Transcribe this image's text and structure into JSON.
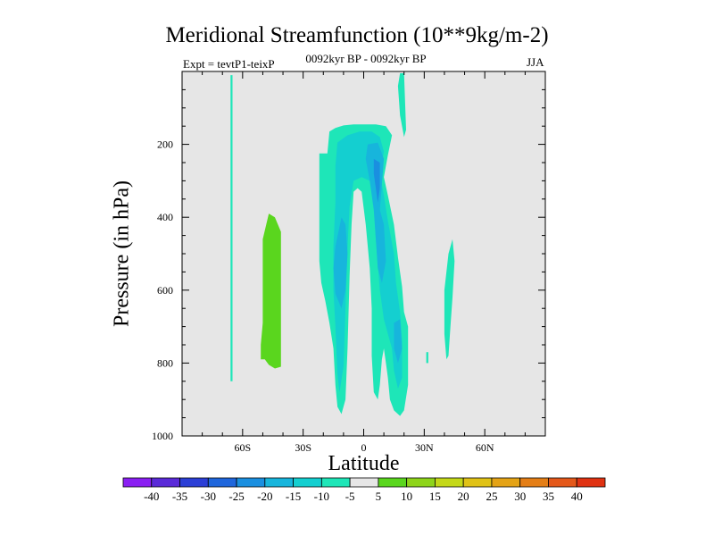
{
  "chart_data": {
    "type": "heatmap",
    "title": "Meridional Streamfunction (10**9kg/m-2)",
    "left_label": "Expt = tevtP1-teixP",
    "center_label": "0092kyr BP - 0092kyr BP",
    "right_label": "JJA",
    "xlabel": "Latitude",
    "ylabel": "Pressure (in hPa)",
    "xlim": [
      -90,
      90
    ],
    "ylim": [
      1000,
      0
    ],
    "x_ticks": [
      {
        "value": -60,
        "label": "60S"
      },
      {
        "value": -30,
        "label": "30S"
      },
      {
        "value": 0,
        "label": "0"
      },
      {
        "value": 30,
        "label": "30N"
      },
      {
        "value": 60,
        "label": "60N"
      }
    ],
    "y_ticks": [
      {
        "value": 200,
        "label": "200"
      },
      {
        "value": 400,
        "label": "400"
      },
      {
        "value": 600,
        "label": "600"
      },
      {
        "value": 800,
        "label": "800"
      },
      {
        "value": 1000,
        "label": "1000"
      }
    ],
    "background_color": "#e6e6e6",
    "colorbar": {
      "levels": [
        -40,
        -35,
        -30,
        -25,
        -20,
        -15,
        -10,
        -5,
        5,
        10,
        15,
        20,
        25,
        30,
        35,
        40
      ],
      "colors": [
        "#8a1ff2",
        "#5a2ad8",
        "#2c3fd6",
        "#1f66dc",
        "#1a8fe0",
        "#17b5dc",
        "#14cfd0",
        "#1ee6b8",
        "#e6e6e6",
        "#5ad61e",
        "#8ed41a",
        "#c4d818",
        "#e0c216",
        "#e4a316",
        "#e47e16",
        "#e4581a",
        "#e03212"
      ]
    },
    "regions": [
      {
        "label": "-10 to -5",
        "color": "#1ee6b8",
        "points": [
          [
            -66,
            10
          ],
          [
            -65,
            10
          ],
          [
            -65,
            850
          ],
          [
            -66,
            850
          ]
        ]
      },
      {
        "label": "5 to 10",
        "color": "#5ad61e",
        "points": [
          [
            -50,
            460
          ],
          [
            -47,
            390
          ],
          [
            -44,
            400
          ],
          [
            -41,
            440
          ],
          [
            -41,
            810
          ],
          [
            -44,
            815
          ],
          [
            -47,
            805
          ],
          [
            -49,
            790
          ],
          [
            -51,
            790
          ],
          [
            -51,
            750
          ],
          [
            -50,
            690
          ]
        ]
      },
      {
        "label": "-10 to -5",
        "color": "#1ee6b8",
        "points": [
          [
            -22,
            225
          ],
          [
            -18,
            225
          ],
          [
            -17,
            165
          ],
          [
            -14,
            155
          ],
          [
            -10,
            148
          ],
          [
            -5,
            145
          ],
          [
            0,
            145
          ],
          [
            6,
            145
          ],
          [
            11,
            150
          ],
          [
            14,
            175
          ],
          [
            12,
            230
          ],
          [
            10,
            290
          ],
          [
            12,
            340
          ],
          [
            15,
            420
          ],
          [
            17,
            510
          ],
          [
            19,
            590
          ],
          [
            20,
            660
          ],
          [
            22,
            700
          ],
          [
            22,
            860
          ],
          [
            20,
            930
          ],
          [
            18,
            945
          ],
          [
            15,
            930
          ],
          [
            13,
            900
          ],
          [
            12,
            840
          ],
          [
            11,
            800
          ],
          [
            10,
            760
          ],
          [
            9,
            790
          ],
          [
            8,
            860
          ],
          [
            7,
            900
          ],
          [
            5,
            880
          ],
          [
            4,
            780
          ],
          [
            4,
            650
          ],
          [
            3,
            540
          ],
          [
            1,
            420
          ],
          [
            -1,
            330
          ],
          [
            -3,
            320
          ],
          [
            -5,
            330
          ],
          [
            -6,
            420
          ],
          [
            -7,
            560
          ],
          [
            -8,
            760
          ],
          [
            -9,
            900
          ],
          [
            -11,
            940
          ],
          [
            -13,
            920
          ],
          [
            -14,
            860
          ],
          [
            -15,
            760
          ],
          [
            -17,
            690
          ],
          [
            -19,
            630
          ],
          [
            -21,
            580
          ],
          [
            -22,
            520
          ]
        ]
      },
      {
        "label": "-10 to -5",
        "color": "#1ee6b8",
        "points": [
          [
            18,
            5
          ],
          [
            20,
            5
          ],
          [
            21,
            160
          ],
          [
            20,
            180
          ],
          [
            18,
            120
          ],
          [
            17,
            40
          ]
        ]
      },
      {
        "label": "-10 to -5",
        "color": "#1ee6b8",
        "points": [
          [
            42,
            500
          ],
          [
            44,
            460
          ],
          [
            45,
            520
          ],
          [
            44,
            620
          ],
          [
            43,
            700
          ],
          [
            42,
            780
          ],
          [
            41,
            790
          ],
          [
            40,
            720
          ],
          [
            40,
            600
          ]
        ]
      },
      {
        "label": "-10 to -5",
        "color": "#1ee6b8",
        "points": [
          [
            31,
            770
          ],
          [
            32,
            770
          ],
          [
            32,
            800
          ],
          [
            31,
            800
          ]
        ]
      },
      {
        "label": "-15 to -10",
        "color": "#14cfd0",
        "points": [
          [
            -13,
            195
          ],
          [
            -8,
            175
          ],
          [
            -2,
            165
          ],
          [
            4,
            165
          ],
          [
            8,
            180
          ],
          [
            10,
            220
          ],
          [
            8,
            280
          ],
          [
            10,
            340
          ],
          [
            12,
            410
          ],
          [
            15,
            500
          ],
          [
            16,
            580
          ],
          [
            18,
            660
          ],
          [
            19,
            740
          ],
          [
            19,
            840
          ],
          [
            17,
            870
          ],
          [
            15,
            820
          ],
          [
            14,
            760
          ],
          [
            12,
            720
          ],
          [
            10,
            680
          ],
          [
            8,
            600
          ],
          [
            6,
            460
          ],
          [
            5,
            360
          ],
          [
            3,
            300
          ],
          [
            -1,
            290
          ],
          [
            -5,
            300
          ],
          [
            -7,
            370
          ],
          [
            -8,
            480
          ],
          [
            -9,
            650
          ],
          [
            -10,
            810
          ],
          [
            -12,
            880
          ],
          [
            -13,
            830
          ],
          [
            -14,
            700
          ],
          [
            -15,
            600
          ],
          [
            -15,
            480
          ],
          [
            -14,
            360
          ],
          [
            -14,
            260
          ]
        ]
      },
      {
        "label": "-20 to -15",
        "color": "#17b5dc",
        "points": [
          [
            -14,
            480
          ],
          [
            -11,
            400
          ],
          [
            -9,
            420
          ],
          [
            -8,
            500
          ],
          [
            -9,
            600
          ],
          [
            -11,
            650
          ],
          [
            -14,
            610
          ],
          [
            -15,
            540
          ]
        ]
      },
      {
        "label": "-20 to -15",
        "color": "#17b5dc",
        "points": [
          [
            2,
            200
          ],
          [
            7,
            195
          ],
          [
            10,
            240
          ],
          [
            9,
            310
          ],
          [
            8,
            380
          ],
          [
            10,
            420
          ],
          [
            11,
            520
          ],
          [
            9,
            580
          ],
          [
            7,
            540
          ],
          [
            6,
            460
          ],
          [
            5,
            380
          ],
          [
            3,
            300
          ],
          [
            1,
            240
          ]
        ]
      },
      {
        "label": "-20 to -15",
        "color": "#17b5dc",
        "points": [
          [
            15,
            690
          ],
          [
            18,
            680
          ],
          [
            19,
            760
          ],
          [
            17,
            800
          ],
          [
            15,
            760
          ]
        ]
      },
      {
        "label": "-25 to -20",
        "color": "#1a8fe0",
        "points": [
          [
            5,
            240
          ],
          [
            8,
            250
          ],
          [
            8,
            320
          ],
          [
            7,
            360
          ],
          [
            6,
            320
          ],
          [
            5,
            280
          ]
        ]
      }
    ]
  }
}
